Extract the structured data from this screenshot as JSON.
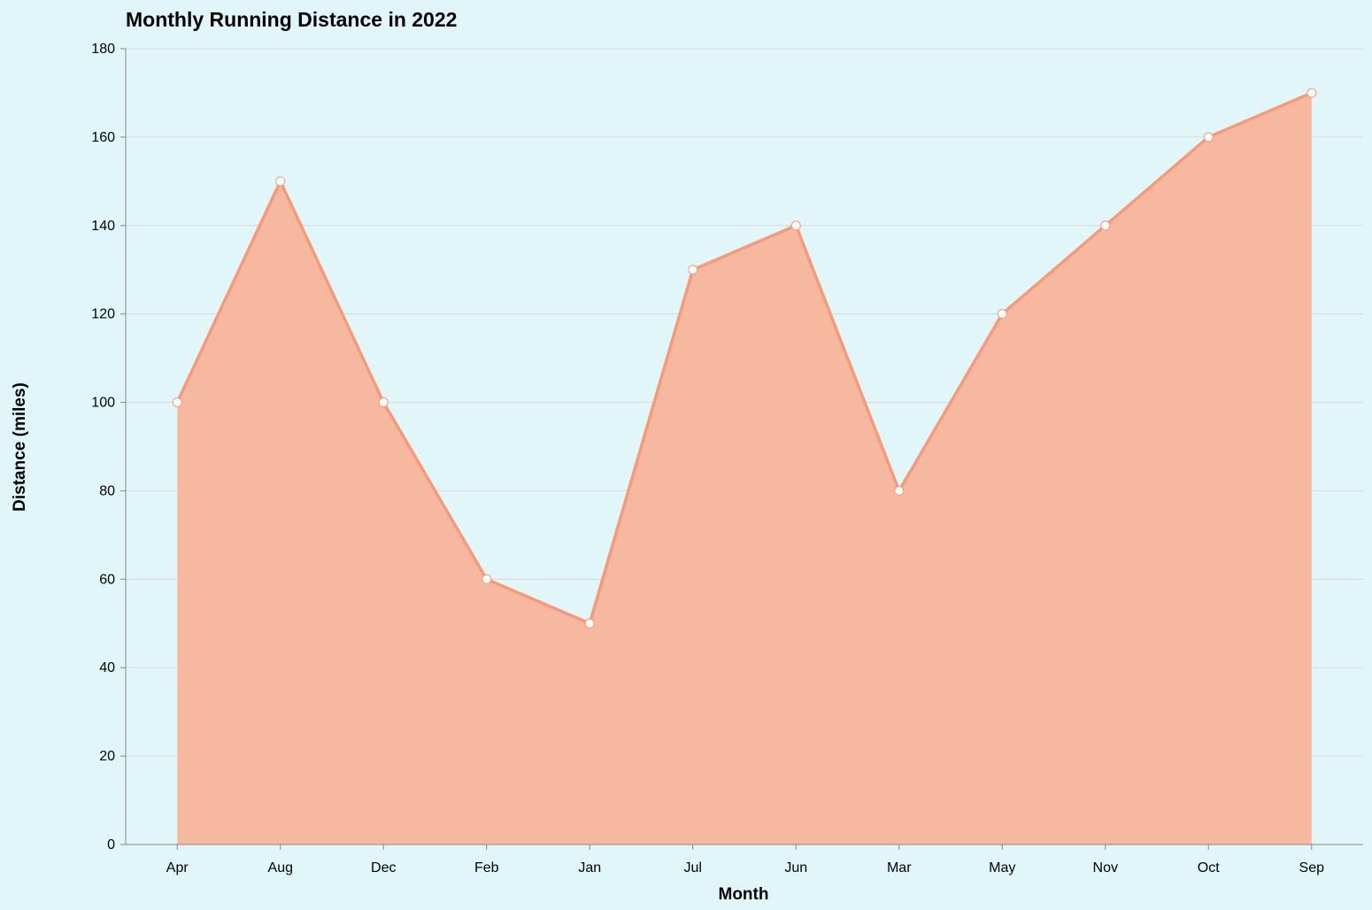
{
  "chart_data": {
    "type": "area",
    "title": "Monthly Running Distance in 2022",
    "xlabel": "Month",
    "ylabel": "Distance (miles)",
    "categories": [
      "Apr",
      "Aug",
      "Dec",
      "Feb",
      "Jan",
      "Jul",
      "Jun",
      "Mar",
      "May",
      "Nov",
      "Oct",
      "Sep"
    ],
    "values": [
      100,
      150,
      100,
      60,
      50,
      130,
      140,
      80,
      120,
      140,
      160,
      170
    ],
    "ylim": [
      0,
      180
    ],
    "yticks": [
      0,
      20,
      40,
      60,
      80,
      100,
      120,
      140,
      160,
      180
    ],
    "grid": true,
    "legend": "none",
    "colors": {
      "background": "#e0f6f8",
      "area_fill": "#f6b9a0",
      "line": "#f79a79",
      "point_fill": "#ffffff",
      "grid": "#d9d9d9",
      "axis": "#888888"
    }
  }
}
